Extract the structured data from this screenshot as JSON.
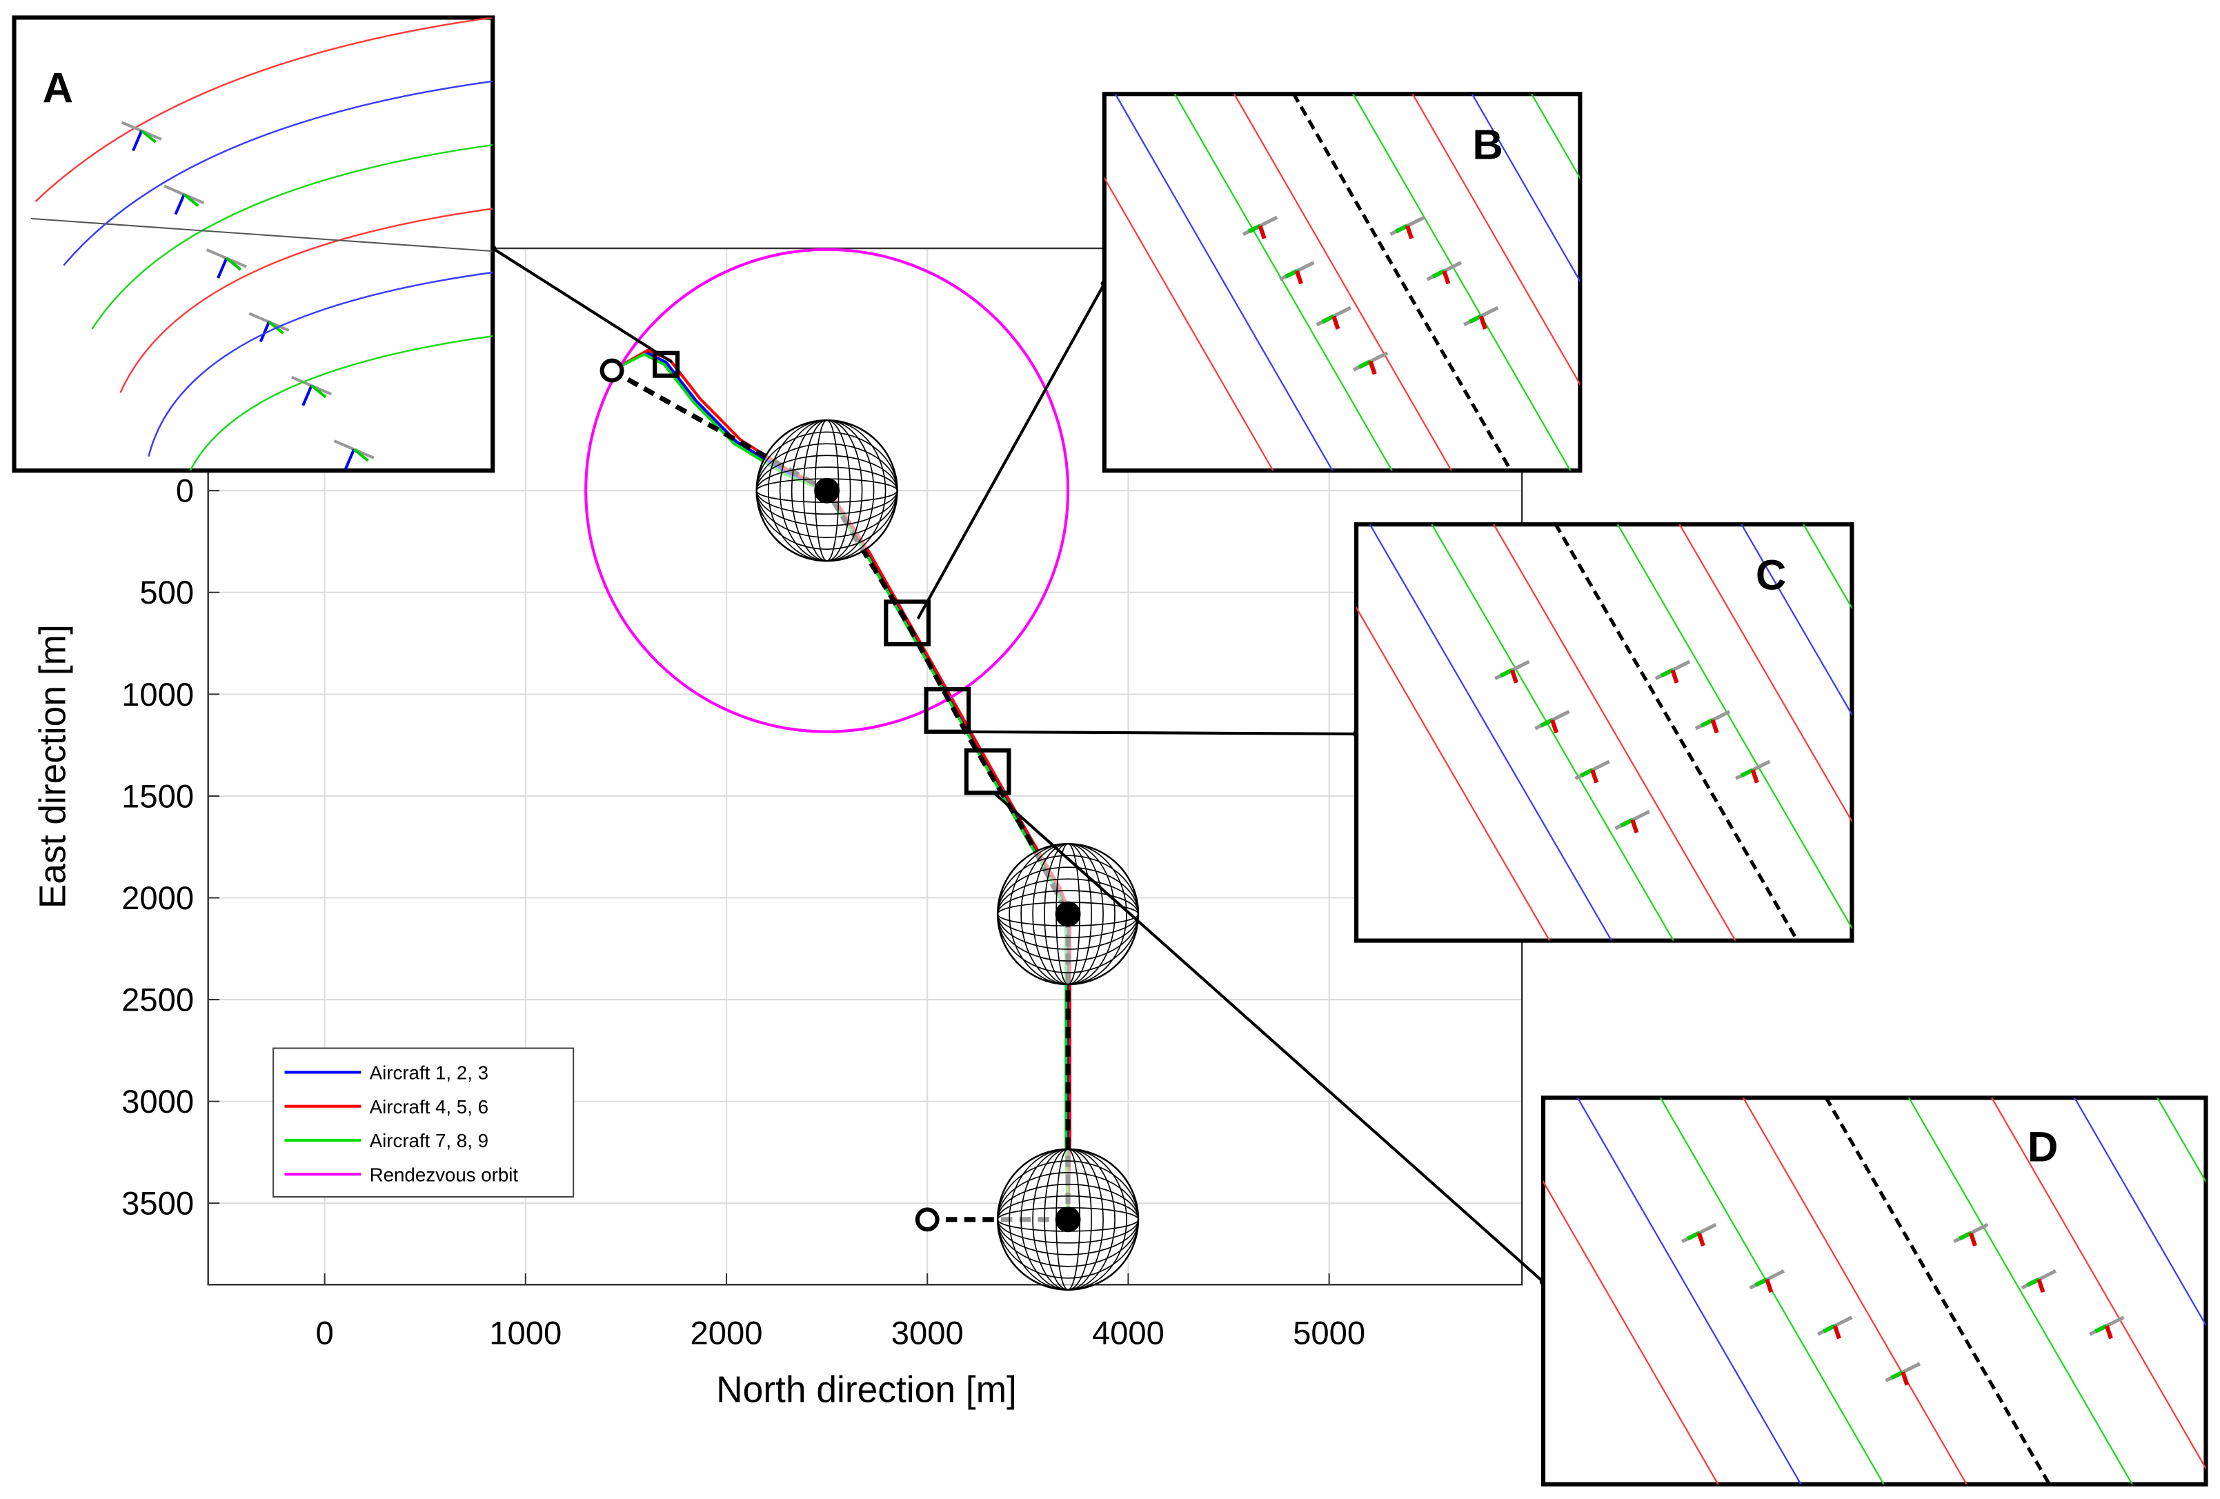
{
  "chart_data": {
    "type": "line",
    "xlabel": "North direction [m]",
    "ylabel": "East direction [m]",
    "xlim": [
      -580,
      5960
    ],
    "ylim": [
      -1190,
      3900
    ],
    "y_reversed": true,
    "xticks": [
      0,
      1000,
      2000,
      3000,
      4000,
      5000
    ],
    "yticks": [
      0,
      500,
      1000,
      1500,
      2000,
      2500,
      3000,
      3500
    ],
    "grid": true,
    "legend": "lower left",
    "series": [
      {
        "name": "Aircraft 1, 2, 3",
        "color": "#0000ff",
        "x": [
          1430,
          1600,
          1700,
          1850,
          2050,
          2300,
          2500,
          2700,
          2900,
          3100,
          3300,
          3500,
          3650,
          3700,
          3700,
          3700,
          3700
        ],
        "values": [
          -590,
          -680,
          -630,
          -440,
          -240,
          -90,
          0,
          300,
          650,
          1000,
          1350,
          1700,
          1950,
          2080,
          2700,
          3200,
          3580
        ]
      },
      {
        "name": "Aircraft 4, 5, 6",
        "color": "#ff0000",
        "x": [
          1430,
          1610,
          1720,
          1870,
          2070,
          2310,
          2510,
          2710,
          2910,
          3110,
          3310,
          3510,
          3660,
          3710,
          3710,
          3710,
          3700
        ],
        "values": [
          -590,
          -690,
          -640,
          -450,
          -250,
          -100,
          0,
          300,
          650,
          1000,
          1350,
          1700,
          1950,
          2080,
          2700,
          3200,
          3580
        ]
      },
      {
        "name": "Aircraft 7, 8, 9",
        "color": "#00dd00",
        "x": [
          1430,
          1590,
          1690,
          1840,
          2040,
          2290,
          2490,
          2690,
          2890,
          3090,
          3290,
          3490,
          3640,
          3690,
          3690,
          3690,
          3700
        ],
        "values": [
          -590,
          -670,
          -620,
          -430,
          -230,
          -80,
          0,
          300,
          650,
          1000,
          1350,
          1700,
          1950,
          2080,
          2700,
          3200,
          3580
        ]
      },
      {
        "name": "Rendezvous orbit",
        "color": "#ff00ff",
        "center": [
          2500,
          0
        ],
        "radius": 1200
      }
    ],
    "reference_path": {
      "x": [
        1430,
        2500,
        2900,
        3200,
        3500,
        3700,
        3700,
        null,
        3000,
        3700
      ],
      "y": [
        -590,
        0,
        650,
        1200,
        1700,
        2080,
        3580,
        null,
        3580,
        3580
      ]
    },
    "start_end": {
      "x": [
        1430,
        3000
      ],
      "y": [
        -590,
        3580
      ]
    },
    "waypoints": {
      "x": [
        2500,
        3700,
        3700
      ],
      "y": [
        0,
        2080,
        3580
      ],
      "radius": 350
    },
    "insets": [
      {
        "label": "A",
        "x": 1700,
        "y": -620
      },
      {
        "label": "B",
        "x": 2900,
        "y": 650
      },
      {
        "label": "C",
        "x": 3100,
        "y": 1080
      },
      {
        "label": "D",
        "x": 3300,
        "y": 1380
      }
    ]
  }
}
